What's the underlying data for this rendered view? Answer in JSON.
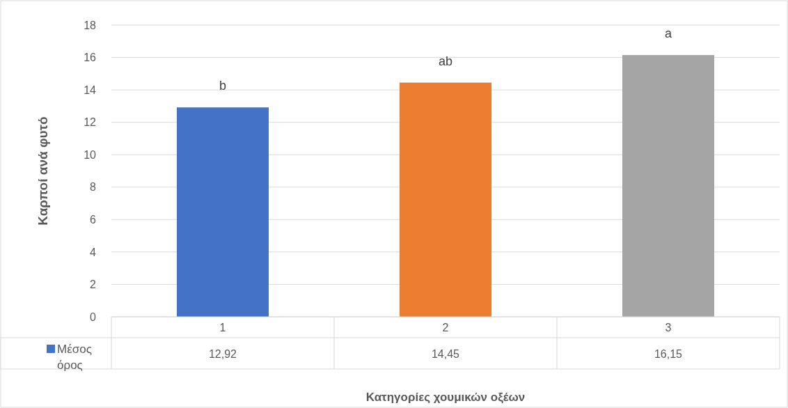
{
  "chart_data": {
    "type": "bar",
    "xlabel": "Κατηγορίες χουμικών οξέων",
    "ylabel": "Καρποί ανά φυτό",
    "categories": [
      "1",
      "2",
      "3"
    ],
    "series": [
      {
        "name": "Μέσος όρος",
        "color": "#4472c4",
        "colors": [
          "#4472c4",
          "#ed7d31",
          "#a5a5a5"
        ],
        "values": [
          12.92,
          14.45,
          16.15
        ],
        "value_labels": [
          "12,92",
          "14,45",
          "16,15"
        ]
      }
    ],
    "ylim": [
      0,
      18
    ],
    "yticks": [
      0,
      2,
      4,
      6,
      8,
      10,
      12,
      14,
      16,
      18
    ],
    "grid": "y",
    "legend": "bottom left",
    "annotations": [
      {
        "text": "b",
        "x": "1",
        "y": 12.92
      },
      {
        "text": "ab",
        "x": "2",
        "y": 14.45
      },
      {
        "text": "a",
        "x": "3",
        "y": 16.15
      }
    ]
  }
}
